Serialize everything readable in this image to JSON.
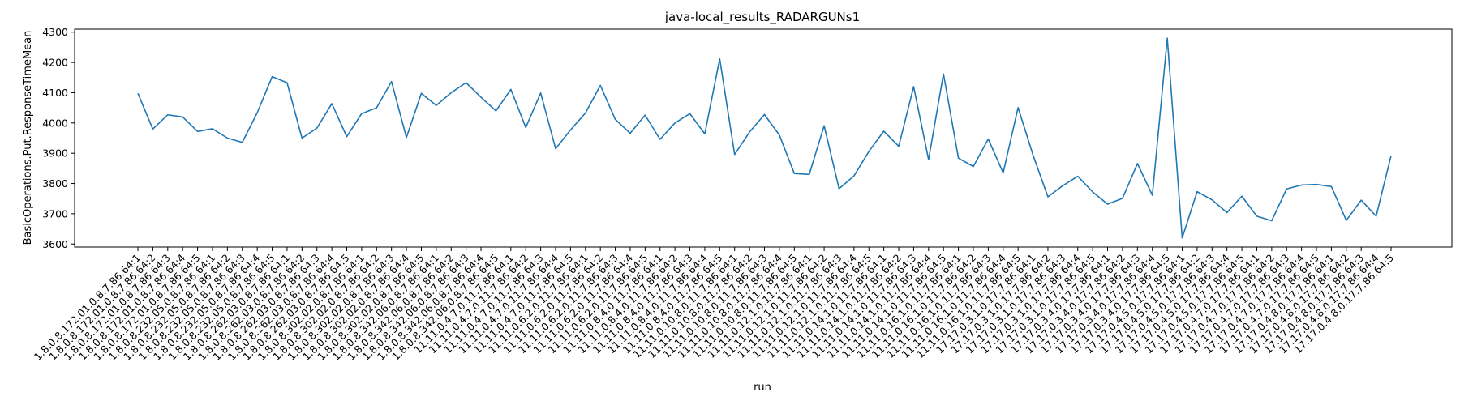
{
  "chart_data": {
    "type": "line",
    "title": "java-local_results_RADARGUNs1",
    "xlabel": "run",
    "ylabel": "BasicOperations.Put.ResponseTimeMean",
    "ylim": [
      3590,
      4310
    ],
    "yticks": [
      3600,
      3700,
      3800,
      3900,
      4000,
      4100,
      4200,
      4300
    ],
    "grid": false,
    "color": "#1f77b4",
    "categories": [
      "1.8.0.8.172.01.0.8.7.86.64:1",
      "1.8.0.8.172.01.0.8.7.86.64:2",
      "1.8.0.8.172.01.0.8.7.86.64:3",
      "1.8.0.8.172.01.0.8.7.86.64:4",
      "1.8.0.8.172.01.0.8.7.86.64:5",
      "1.8.0.8.232.05.0.8.7.86.64:1",
      "1.8.0.8.232.05.0.8.7.86.64:2",
      "1.8.0.8.232.05.0.8.7.86.64:3",
      "1.8.0.8.232.05.0.8.7.86.64:4",
      "1.8.0.8.232.05.0.8.7.86.64:5",
      "1.8.0.8.262.03.0.8.7.86.64:1",
      "1.8.0.8.262.03.0.8.7.86.64:2",
      "1.8.0.8.262.03.0.8.7.86.64:3",
      "1.8.0.8.262.03.0.8.7.86.64:4",
      "1.8.0.8.262.03.0.8.7.86.64:5",
      "1.8.0.8.302.02.0.8.7.86.64:1",
      "1.8.0.8.302.02.0.8.7.86.64:2",
      "1.8.0.8.302.02.0.8.7.86.64:3",
      "1.8.0.8.302.02.0.8.7.86.64:4",
      "1.8.0.8.302.02.0.8.7.86.64:5",
      "1.8.0.8.342.06.0.8.7.86.64:1",
      "1.8.0.8.342.06.0.8.7.86.64:2",
      "1.8.0.8.342.06.0.8.7.86.64:3",
      "1.8.0.8.342.06.0.8.7.86.64:4",
      "1.8.0.8.342.06.0.8.7.86.64:5",
      "11.11.0.4.7.0.11.7.86.64:1",
      "11.11.0.4.7.0.11.7.86.64:2",
      "11.11.0.4.7.0.11.7.86.64:3",
      "11.11.0.4.7.0.11.7.86.64:4",
      "11.11.0.4.7.0.11.7.86.64:5",
      "11.11.0.6.2.0.11.7.86.64:1",
      "11.11.0.6.2.0.11.7.86.64:2",
      "11.11.0.6.2.0.11.7.86.64:3",
      "11.11.0.6.2.0.11.7.86.64:4",
      "11.11.0.6.2.0.11.7.86.64:5",
      "11.11.0.8.4.0.11.7.86.64:1",
      "11.11.0.8.4.0.11.7.86.64:2",
      "11.11.0.8.4.0.11.7.86.64:3",
      "11.11.0.8.4.0.11.7.86.64:4",
      "11.11.0.8.4.0.11.7.86.64:5",
      "11.11.0.10.8.0.11.7.86.64:1",
      "11.11.0.10.8.0.11.7.86.64:2",
      "11.11.0.10.8.0.11.7.86.64:3",
      "11.11.0.10.8.0.11.7.86.64:4",
      "11.11.0.10.8.0.11.7.86.64:5",
      "11.11.0.12.1.0.11.7.86.64:1",
      "11.11.0.12.1.0.11.7.86.64:2",
      "11.11.0.12.1.0.11.7.86.64:3",
      "11.11.0.12.1.0.11.7.86.64:4",
      "11.11.0.12.1.0.11.7.86.64:5",
      "11.11.0.14.1.0.11.7.86.64:1",
      "11.11.0.14.1.0.11.7.86.64:2",
      "11.11.0.14.1.0.11.7.86.64:3",
      "11.11.0.14.1.0.11.7.86.64:4",
      "11.11.0.14.1.0.11.7.86.64:5",
      "11.11.0.16.1.0.11.7.86.64:1",
      "11.11.0.16.1.0.11.7.86.64:2",
      "11.11.0.16.1.0.11.7.86.64:3",
      "11.11.0.16.1.0.11.7.86.64:4",
      "11.11.0.16.1.0.11.7.86.64:5",
      "17.17.0.3.1.0.17.7.86.64:1",
      "17.17.0.3.1.0.17.7.86.64:2",
      "17.17.0.3.1.0.17.7.86.64:3",
      "17.17.0.3.1.0.17.7.86.64:4",
      "17.17.0.3.1.0.17.7.86.64:5",
      "17.17.0.3.4.0.17.7.86.64:1",
      "17.17.0.3.4.0.17.7.86.64:2",
      "17.17.0.3.4.0.17.7.86.64:3",
      "17.17.0.3.4.0.17.7.86.64:4",
      "17.17.0.3.4.0.17.7.86.64:5",
      "17.17.0.4.5.0.17.7.86.64:1",
      "17.17.0.4.5.0.17.7.86.64:2",
      "17.17.0.4.5.0.17.7.86.64:3",
      "17.17.0.4.5.0.17.7.86.64:4",
      "17.17.0.4.5.0.17.7.86.64:5",
      "17.17.0.4.7.0.17.7.86.64:1",
      "17.17.0.4.7.0.17.7.86.64:2",
      "17.17.0.4.7.0.17.7.86.64:3",
      "17.17.0.4.7.0.17.7.86.64:4",
      "17.17.0.4.7.0.17.7.86.64:5",
      "17.17.0.4.8.0.17.7.86.64:1",
      "17.17.0.4.8.0.17.7.86.64:2",
      "17.17.0.4.8.0.17.7.86.64:3",
      "17.17.0.4.8.0.17.7.86.64:4",
      "17.17.0.4.8.0.17.7.86.64:5"
    ],
    "values": [
      4098,
      3980,
      4027,
      4020,
      3972,
      3981,
      3950,
      3936,
      4034,
      4153,
      4133,
      3950,
      3983,
      4064,
      3955,
      4031,
      4050,
      4137,
      3952,
      4098,
      4058,
      4100,
      4133,
      4085,
      4040,
      4111,
      3985,
      4099,
      3915,
      3977,
      4033,
      4124,
      4012,
      3966,
      4026,
      3946,
      4000,
      4031,
      3964,
      4212,
      3896,
      3970,
      4028,
      3960,
      3833,
      3830,
      3991,
      3783,
      3825,
      3906,
      3973,
      3923,
      4120,
      3879,
      4162,
      3884,
      3856,
      3947,
      3835,
      4051,
      3894,
      3756,
      3793,
      3824,
      3772,
      3732,
      3751,
      3866,
      3761,
      4280,
      3620,
      3773,
      3746,
      3704,
      3758,
      3692,
      3677,
      3782,
      3795,
      3797,
      3790,
      3678,
      3745,
      3692,
      3892
    ]
  }
}
